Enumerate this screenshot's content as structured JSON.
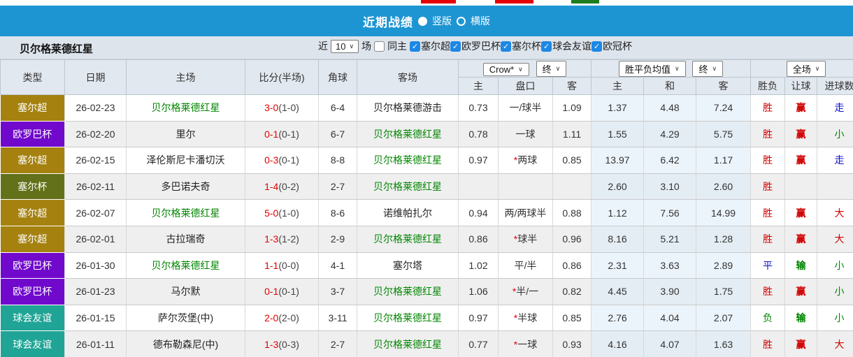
{
  "colors": {
    "accent_blue": "#1d95d3",
    "league_serbia_super": "#a5820f",
    "league_europa": "#7109cd",
    "league_serbia_cup": "#63721a",
    "league_friendly": "#20a496",
    "team_highlight": "#008600",
    "score_red": "#e50000"
  },
  "titlebar": {
    "title": "近期战绩",
    "radio_vertical": "竖版",
    "radio_horizontal": "横版"
  },
  "filter": {
    "team": "贝尔格莱德红星",
    "near_label": "近",
    "count_value": "10",
    "games_label": "场",
    "same_home_label": "同主",
    "check_glyph": "✓",
    "leagues": [
      "塞尔超",
      "欧罗巴杯",
      "塞尔杯",
      "球会友谊",
      "欧冠杯"
    ]
  },
  "table": {
    "headers": {
      "type": "类型",
      "date": "日期",
      "home": "主场",
      "score": "比分(半场)",
      "corner": "角球",
      "away": "客场",
      "odds_select": "Crow*",
      "odds_final": "终",
      "avg_select": "胜平负均值",
      "avg_final": "终",
      "full_select": "全场",
      "sub": [
        "主",
        "盘口",
        "客",
        "主",
        "和",
        "客",
        "胜负",
        "让球",
        "进球数"
      ]
    },
    "rows": [
      {
        "league": "塞尔超",
        "league_color": "#a5820f",
        "date": "26-02-23",
        "home": "贝尔格莱德红星",
        "home_green": true,
        "score": "3-0",
        "half": "(1-0)",
        "corner": "6-4",
        "away": "贝尔格莱德游击",
        "away_green": false,
        "odds_home": "0.73",
        "handicap_star": "",
        "handicap": "一/球半",
        "odds_away": "1.09",
        "avg_win": "1.37",
        "avg_draw": "4.48",
        "avg_lose": "7.24",
        "result": "胜",
        "result_color": "red",
        "handicap_result": "赢",
        "handicap_result_color": "red",
        "goals_result": "走",
        "goals_result_color": "blue"
      },
      {
        "league": "欧罗巴杯",
        "league_color": "#7109cd",
        "date": "26-02-20",
        "home": "里尔",
        "home_green": false,
        "score": "0-1",
        "half": "(0-1)",
        "corner": "6-7",
        "away": "贝尔格莱德红星",
        "away_green": true,
        "odds_home": "0.78",
        "handicap_star": "",
        "handicap": "一球",
        "odds_away": "1.11",
        "avg_win": "1.55",
        "avg_draw": "4.29",
        "avg_lose": "5.75",
        "result": "胜",
        "result_color": "red",
        "handicap_result": "赢",
        "handicap_result_color": "red",
        "goals_result": "小",
        "goals_result_color": "green"
      },
      {
        "league": "塞尔超",
        "league_color": "#a5820f",
        "date": "26-02-15",
        "home": "泽伦斯尼卡潘切沃",
        "home_green": false,
        "score": "0-3",
        "half": "(0-1)",
        "corner": "8-8",
        "away": "贝尔格莱德红星",
        "away_green": true,
        "odds_home": "0.97",
        "handicap_star": "*",
        "handicap": "两球",
        "odds_away": "0.85",
        "avg_win": "13.97",
        "avg_draw": "6.42",
        "avg_lose": "1.17",
        "result": "胜",
        "result_color": "red",
        "handicap_result": "赢",
        "handicap_result_color": "red",
        "goals_result": "走",
        "goals_result_color": "blue"
      },
      {
        "league": "塞尔杯",
        "league_color": "#63721a",
        "date": "26-02-11",
        "home": "多巴诺夫奇",
        "home_green": false,
        "score": "1-4",
        "half": "(0-2)",
        "corner": "2-7",
        "away": "贝尔格莱德红星",
        "away_green": true,
        "odds_home": "",
        "handicap_star": "",
        "handicap": "",
        "odds_away": "",
        "avg_win": "2.60",
        "avg_draw": "3.10",
        "avg_lose": "2.60",
        "result": "胜",
        "result_color": "red",
        "handicap_result": "",
        "handicap_result_color": "red",
        "goals_result": "",
        "goals_result_color": "red"
      },
      {
        "league": "塞尔超",
        "league_color": "#a5820f",
        "date": "26-02-07",
        "home": "贝尔格莱德红星",
        "home_green": true,
        "score": "5-0",
        "half": "(1-0)",
        "corner": "8-6",
        "away": "诺维帕扎尔",
        "away_green": false,
        "odds_home": "0.94",
        "handicap_star": "",
        "handicap": "两/两球半",
        "odds_away": "0.88",
        "avg_win": "1.12",
        "avg_draw": "7.56",
        "avg_lose": "14.99",
        "result": "胜",
        "result_color": "red",
        "handicap_result": "赢",
        "handicap_result_color": "red",
        "goals_result": "大",
        "goals_result_color": "red"
      },
      {
        "league": "塞尔超",
        "league_color": "#a5820f",
        "date": "26-02-01",
        "home": "古拉瑞奇",
        "home_green": false,
        "score": "1-3",
        "half": "(1-2)",
        "corner": "2-9",
        "away": "贝尔格莱德红星",
        "away_green": true,
        "odds_home": "0.86",
        "handicap_star": "*",
        "handicap": "球半",
        "odds_away": "0.96",
        "avg_win": "8.16",
        "avg_draw": "5.21",
        "avg_lose": "1.28",
        "result": "胜",
        "result_color": "red",
        "handicap_result": "赢",
        "handicap_result_color": "red",
        "goals_result": "大",
        "goals_result_color": "red"
      },
      {
        "league": "欧罗巴杯",
        "league_color": "#7109cd",
        "date": "26-01-30",
        "home": "贝尔格莱德红星",
        "home_green": true,
        "score": "1-1",
        "half": "(0-0)",
        "corner": "4-1",
        "away": "塞尔塔",
        "away_green": false,
        "odds_home": "1.02",
        "handicap_star": "",
        "handicap": "平/半",
        "odds_away": "0.86",
        "avg_win": "2.31",
        "avg_draw": "3.63",
        "avg_lose": "2.89",
        "result": "平",
        "result_color": "blue",
        "handicap_result": "输",
        "handicap_result_color": "green",
        "goals_result": "小",
        "goals_result_color": "green"
      },
      {
        "league": "欧罗巴杯",
        "league_color": "#7109cd",
        "date": "26-01-23",
        "home": "马尔默",
        "home_green": false,
        "score": "0-1",
        "half": "(0-1)",
        "corner": "3-7",
        "away": "贝尔格莱德红星",
        "away_green": true,
        "odds_home": "1.06",
        "handicap_star": "*",
        "handicap": "半/一",
        "odds_away": "0.82",
        "avg_win": "4.45",
        "avg_draw": "3.90",
        "avg_lose": "1.75",
        "result": "胜",
        "result_color": "red",
        "handicap_result": "赢",
        "handicap_result_color": "red",
        "goals_result": "小",
        "goals_result_color": "green"
      },
      {
        "league": "球会友谊",
        "league_color": "#20a496",
        "date": "26-01-15",
        "home": "萨尔茨堡(中)",
        "home_green": false,
        "score": "2-0",
        "half": "(2-0)",
        "corner": "3-11",
        "away": "贝尔格莱德红星",
        "away_green": true,
        "odds_home": "0.97",
        "handicap_star": "*",
        "handicap": "半球",
        "odds_away": "0.85",
        "avg_win": "2.76",
        "avg_draw": "4.04",
        "avg_lose": "2.07",
        "result": "负",
        "result_color": "green",
        "handicap_result": "输",
        "handicap_result_color": "green",
        "goals_result": "小",
        "goals_result_color": "green"
      },
      {
        "league": "球会友谊",
        "league_color": "#20a496",
        "date": "26-01-11",
        "home": "德布勒森尼(中)",
        "home_green": false,
        "score": "1-3",
        "half": "(0-3)",
        "corner": "2-7",
        "away": "贝尔格莱德红星",
        "away_green": true,
        "odds_home": "0.77",
        "handicap_star": "*",
        "handicap": "一球",
        "odds_away": "0.93",
        "avg_win": "4.16",
        "avg_draw": "4.07",
        "avg_lose": "1.63",
        "result": "胜",
        "result_color": "red",
        "handicap_result": "赢",
        "handicap_result_color": "red",
        "goals_result": "大",
        "goals_result_color": "red"
      }
    ]
  }
}
